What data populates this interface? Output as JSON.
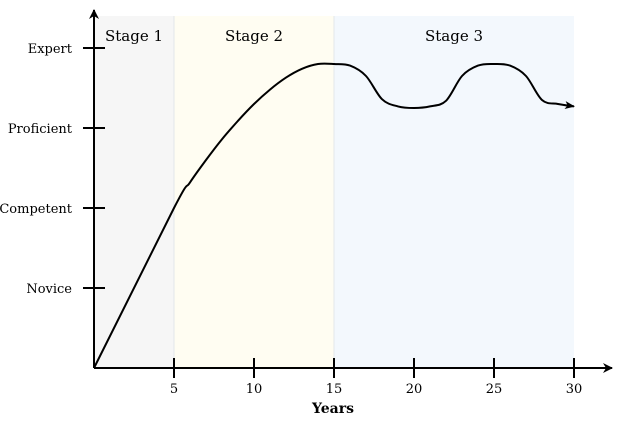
{
  "chart_data": {
    "type": "line",
    "xlabel": "Years",
    "ylabel": "",
    "xlim": [
      0,
      30
    ],
    "ylim": [
      0,
      4
    ],
    "xticks": [
      5,
      10,
      15,
      20,
      25,
      30
    ],
    "yticks": [
      {
        "value": 1,
        "label": "Novice"
      },
      {
        "value": 2,
        "label": "Competent"
      },
      {
        "value": 3,
        "label": "Proficient"
      },
      {
        "value": 4,
        "label": "Expert"
      }
    ],
    "stages": [
      {
        "label": "Stage 1",
        "from": 0,
        "to": 5,
        "color": "#f6f6f6"
      },
      {
        "label": "Stage 2",
        "from": 5,
        "to": 15,
        "color": "#fffdf2"
      },
      {
        "label": "Stage 3",
        "from": 15,
        "to": 30,
        "color": "#f3f8fd"
      }
    ],
    "series": [
      {
        "points": [
          [
            0,
            0
          ],
          [
            5,
            2
          ],
          [
            6,
            2.32
          ],
          [
            7,
            2.6
          ],
          [
            8,
            2.86
          ],
          [
            9,
            3.09
          ],
          [
            10,
            3.3
          ],
          [
            11,
            3.48
          ],
          [
            12,
            3.63
          ],
          [
            13,
            3.74
          ],
          [
            14,
            3.8
          ],
          [
            15,
            3.8
          ],
          [
            16,
            3.78
          ],
          [
            17,
            3.65
          ],
          [
            18,
            3.36
          ],
          [
            19,
            3.27
          ],
          [
            20,
            3.25
          ],
          [
            21,
            3.27
          ],
          [
            22,
            3.34
          ],
          [
            23,
            3.65
          ],
          [
            24,
            3.78
          ],
          [
            25,
            3.8
          ],
          [
            26,
            3.78
          ],
          [
            27,
            3.65
          ],
          [
            28,
            3.35
          ],
          [
            29,
            3.3
          ],
          [
            30,
            3.27
          ]
        ]
      }
    ],
    "grid": false,
    "colors": {
      "line": "#000000",
      "axis": "#000000"
    }
  }
}
